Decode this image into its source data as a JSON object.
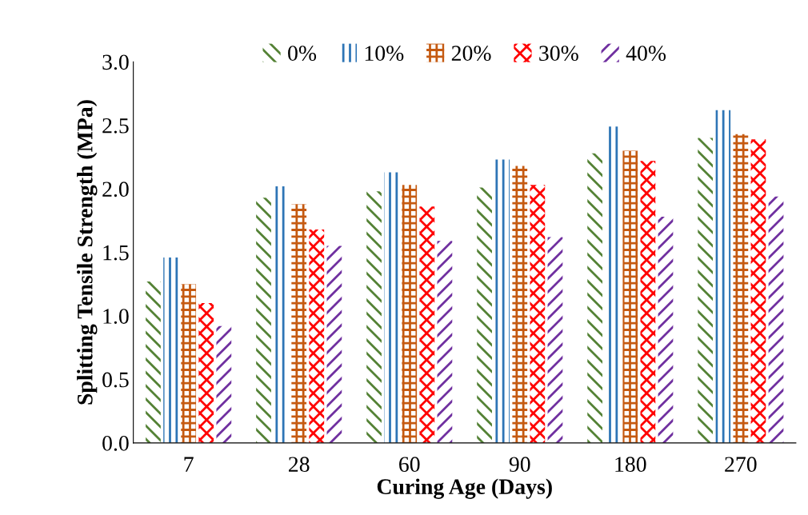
{
  "chart_data": {
    "type": "bar",
    "xlabel": "Curing Age (Days)",
    "ylabel": "Splitting Tensile Strength (MPa)",
    "categories": [
      "7",
      "28",
      "60",
      "90",
      "180",
      "270"
    ],
    "series": [
      {
        "name": "0%",
        "color": "#548235",
        "values": [
          1.27,
          1.93,
          1.98,
          2.01,
          2.28,
          2.4
        ]
      },
      {
        "name": "10%",
        "color": "#2e75b6",
        "values": [
          1.46,
          2.02,
          2.13,
          2.23,
          2.49,
          2.62
        ]
      },
      {
        "name": "20%",
        "color": "#c55a11",
        "values": [
          1.25,
          1.88,
          2.03,
          2.18,
          2.3,
          2.43
        ]
      },
      {
        "name": "30%",
        "color": "#ff0000",
        "values": [
          1.1,
          1.68,
          1.86,
          2.03,
          2.22,
          2.39
        ]
      },
      {
        "name": "40%",
        "color": "#7030a0",
        "values": [
          0.92,
          1.55,
          1.59,
          1.62,
          1.78,
          1.94
        ]
      }
    ],
    "ylim": [
      0,
      3.0
    ],
    "yticks": [
      {
        "value": 0,
        "label": "0.0"
      },
      {
        "value": 0.5,
        "label": "0.5"
      },
      {
        "value": 1.0,
        "label": "1.0"
      },
      {
        "value": 1.5,
        "label": "1.5"
      },
      {
        "value": 2.0,
        "label": "2.0"
      },
      {
        "value": 2.5,
        "label": "2.5"
      },
      {
        "value": 3.0,
        "label": "3.0"
      }
    ],
    "grid": false,
    "legend": "top"
  }
}
